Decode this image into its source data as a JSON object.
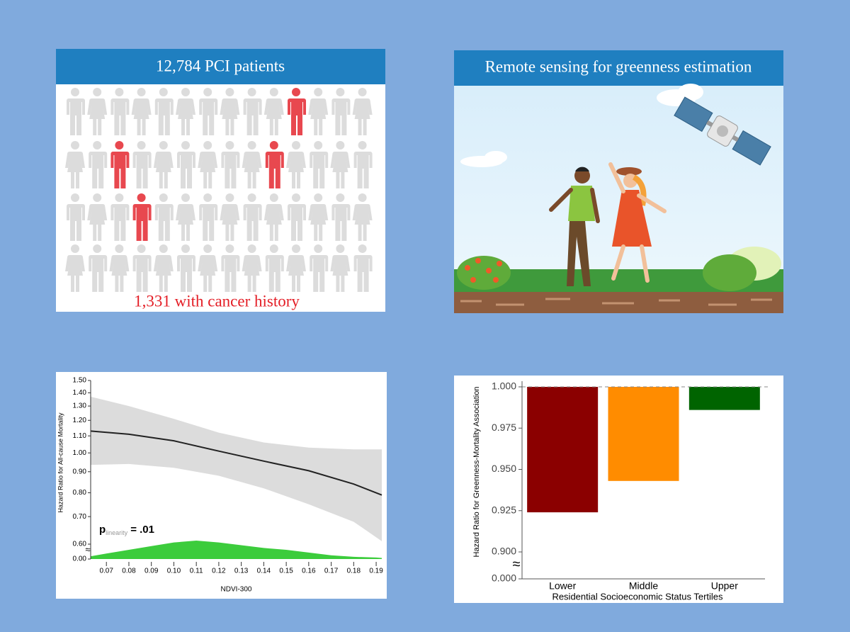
{
  "panels": {
    "cohort": {
      "title": "12,784 PCI patients",
      "caption": "1,331 with cancer history"
    },
    "sensing": {
      "title": "Remote sensing for greenness estimation"
    }
  },
  "chart_data": [
    {
      "type": "line",
      "x_label": "NDVI-300",
      "y_label": "Hazard Ratio for All-cause Mortality",
      "log_y": true,
      "axis_break": true,
      "annotation": {
        "p": "p",
        "sub": "linearity",
        "text": "= .01"
      },
      "xlim": [
        0.063,
        0.1925
      ],
      "xticks": [
        0.07,
        0.08,
        0.09,
        {
          "value": 0.1,
          "label": "0.10"
        },
        0.11,
        0.12,
        0.13,
        0.14,
        0.15,
        0.16,
        0.17,
        0.18,
        0.19
      ],
      "ylim": [
        0.6,
        1.5
      ],
      "yticks": [
        {
          "value": 0,
          "label": "0.00"
        },
        {
          "value": 0.6,
          "label": "0.60"
        },
        {
          "value": 0.7,
          "label": "0.70"
        },
        {
          "value": 0.8,
          "label": "0.80"
        },
        {
          "value": 0.9,
          "label": "0.90"
        },
        {
          "value": 1,
          "label": "1.00"
        },
        {
          "value": 1.1,
          "label": "1.10"
        },
        {
          "value": 1.2,
          "label": "1.20"
        },
        {
          "value": 1.3,
          "label": "1.30"
        },
        {
          "value": 1.4,
          "label": "1.40"
        },
        {
          "value": 1.5,
          "label": "1.50"
        }
      ],
      "x": [
        0.063,
        0.08,
        0.1,
        0.12,
        0.14,
        0.16,
        0.18,
        0.1925
      ],
      "series": [
        {
          "color": "#222222",
          "values": [
            1.13,
            1.11,
            1.07,
            1.01,
            0.955,
            0.905,
            0.84,
            0.79
          ]
        }
      ],
      "band": {
        "color": "#dcdcdc",
        "upper": [
          1.37,
          1.3,
          1.21,
          1.12,
          1.06,
          1.03,
          1.02,
          1.02
        ],
        "lower": [
          0.935,
          0.94,
          0.92,
          0.88,
          0.82,
          0.75,
          0.68,
          0.61
        ]
      },
      "density": {
        "color": "#3ccc3c",
        "x": [
          0.063,
          0.07,
          0.08,
          0.09,
          0.1,
          0.11,
          0.12,
          0.13,
          0.14,
          0.15,
          0.16,
          0.17,
          0.18,
          0.19,
          0.1925
        ],
        "values": [
          0.15,
          0.3,
          0.5,
          0.7,
          0.9,
          1.0,
          0.9,
          0.75,
          0.6,
          0.5,
          0.35,
          0.2,
          0.12,
          0.08,
          0.06
        ]
      }
    },
    {
      "type": "bar",
      "x_label": "Residential Socioeconomic Status Tertiles",
      "y_label": "Hazard Ratio for Greenness-Mortality Association",
      "axis_break": true,
      "reference_line": 1,
      "categories": [
        "Lower",
        "Middle",
        "Upper"
      ],
      "values": [
        0.924,
        0.943,
        0.986
      ],
      "colors": [
        "#8b0000",
        "#ff8c00",
        "#006400"
      ],
      "ylim": [
        0.9,
        1
      ],
      "yticks": [
        {
          "value": 0,
          "label": "0.000"
        },
        {
          "value": 0.9,
          "label": "0.900"
        },
        {
          "value": 0.925,
          "label": "0.925"
        },
        {
          "value": 0.95,
          "label": "0.950"
        },
        {
          "value": 0.975,
          "label": "0.975"
        },
        {
          "value": 1,
          "label": "1.000"
        }
      ]
    }
  ]
}
